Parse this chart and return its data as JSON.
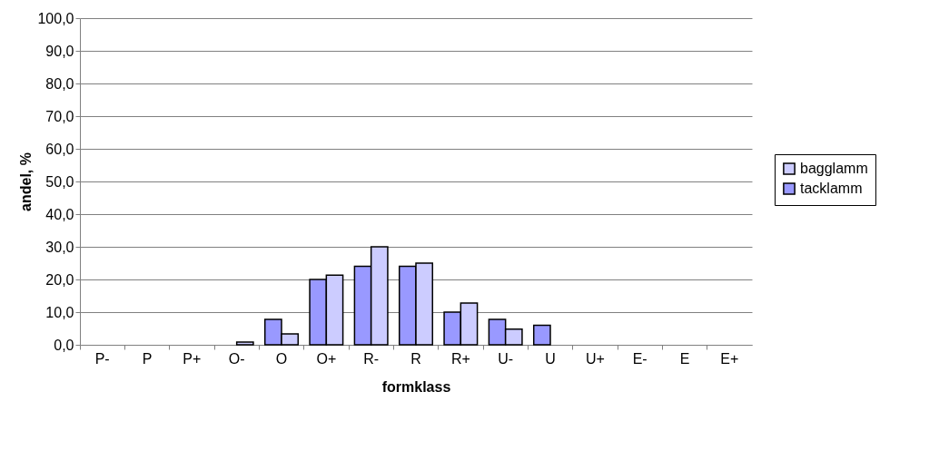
{
  "chart_data": {
    "type": "bar",
    "xlabel": "formklass",
    "ylabel": "andel, %",
    "categories": [
      "P-",
      "P",
      "P+",
      "O-",
      "O",
      "O+",
      "R-",
      "R",
      "R+",
      "U-",
      "U",
      "U+",
      "E-",
      "E",
      "E+"
    ],
    "series": [
      {
        "name": "tacklamm",
        "color": "#9999ff",
        "values": [
          null,
          null,
          null,
          null,
          7.8,
          20,
          24,
          24,
          10,
          7.8,
          6,
          null,
          null,
          null,
          null
        ]
      },
      {
        "name": "bagglamm",
        "color": "#ccccff",
        "values": [
          null,
          null,
          null,
          0.8,
          3.3,
          21.3,
          30,
          25,
          12.8,
          4.8,
          null,
          null,
          null,
          null,
          null
        ]
      }
    ],
    "ylim": [
      0,
      100
    ],
    "yticks": [
      {
        "value": 0,
        "label": "0,0"
      },
      {
        "value": 10,
        "label": "10,0"
      },
      {
        "value": 20,
        "label": "20,0"
      },
      {
        "value": 30,
        "label": "30,0"
      },
      {
        "value": 40,
        "label": "40,0"
      },
      {
        "value": 50,
        "label": "50,0"
      },
      {
        "value": 60,
        "label": "60,0"
      },
      {
        "value": 70,
        "label": "70,0"
      },
      {
        "value": 80,
        "label": "80,0"
      },
      {
        "value": 90,
        "label": "90,0"
      },
      {
        "value": 100,
        "label": "100,0"
      }
    ],
    "grid": "y",
    "legend": "right"
  }
}
